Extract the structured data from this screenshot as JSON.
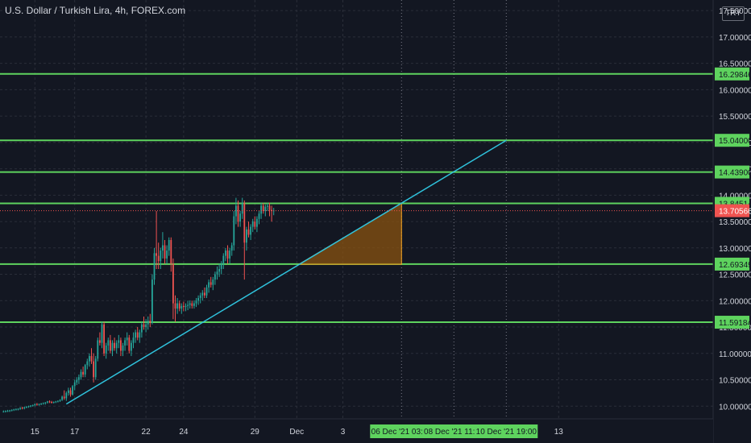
{
  "header": {
    "title": "U.S. Dollar / Turkish Lira, 4h, FOREX.com",
    "currency": "TRY"
  },
  "colors": {
    "background": "#131722",
    "grid": "#2a2e39",
    "text": "#d1d4dc",
    "up": "#26a69a",
    "down": "#ef5350",
    "level": "#5ed35e",
    "level_label_bg": "#5ed35e",
    "trendline": "#2fc2dc",
    "triangle_fill": "#8a5310",
    "triangle_edge": "#f5a623",
    "price_line": "#ef5350",
    "date_label_bg": "#5ed35e"
  },
  "chart_data": {
    "type": "candlestick",
    "symbol": "USDTRY",
    "interval": "4h",
    "ylim": [
      9.76,
      17.7
    ],
    "y_ticks": [
      "10.00000",
      "10.50000",
      "11.00000",
      "11.50000",
      "12.00000",
      "12.50000",
      "13.00000",
      "13.50000",
      "14.00000",
      "14.50000",
      "15.00000",
      "15.50000",
      "16.00000",
      "16.50000",
      "17.00000",
      "17.50000"
    ],
    "x_ticks": [
      {
        "label": "15",
        "i": 15
      },
      {
        "label": "17",
        "i": 34
      },
      {
        "label": "22",
        "i": 68
      },
      {
        "label": "24",
        "i": 86
      },
      {
        "label": "29",
        "i": 120
      },
      {
        "label": "Dec",
        "i": 140
      },
      {
        "label": "3",
        "i": 162
      },
      {
        "label": "13",
        "i": 265
      }
    ],
    "horizontal_levels": [
      "16.29846",
      "15.04000",
      "14.43900",
      "13.84514",
      "12.69349",
      "11.59184"
    ],
    "current_price": "13.70566",
    "trendline": {
      "from": {
        "i": 30,
        "price": 10.04
      },
      "to": {
        "i": 240,
        "price": 15.04
      }
    },
    "triangle": {
      "points": [
        {
          "i": 141,
          "price": 12.69
        },
        {
          "i": 190,
          "price": 13.845
        },
        {
          "i": 190,
          "price": 12.69
        }
      ]
    },
    "vertical_markers": [
      {
        "label": "06 Dec '21   03:00",
        "i": 190
      },
      {
        "label": "08 Dec '21   11:00",
        "i": 215
      },
      {
        "label": "10 Dec '21   19:00",
        "i": 240
      }
    ],
    "candles": [
      [
        9.9,
        9.92,
        9.88,
        9.9
      ],
      [
        9.9,
        9.92,
        9.88,
        9.91
      ],
      [
        9.91,
        9.93,
        9.89,
        9.91
      ],
      [
        9.91,
        9.93,
        9.89,
        9.92
      ],
      [
        9.92,
        9.94,
        9.9,
        9.93
      ],
      [
        9.93,
        9.95,
        9.91,
        9.94
      ],
      [
        9.94,
        9.96,
        9.92,
        9.94
      ],
      [
        9.94,
        9.96,
        9.92,
        9.95
      ],
      [
        9.95,
        9.98,
        9.93,
        9.97
      ],
      [
        9.97,
        9.99,
        9.94,
        9.96
      ],
      [
        9.96,
        9.99,
        9.94,
        9.98
      ],
      [
        9.98,
        10.0,
        9.96,
        9.99
      ],
      [
        9.99,
        10.01,
        9.97,
        10.0
      ],
      [
        10.0,
        10.02,
        9.98,
        10.01
      ],
      [
        10.01,
        10.03,
        9.99,
        10.02
      ],
      [
        10.02,
        10.05,
        10.0,
        10.04
      ],
      [
        10.04,
        10.06,
        10.01,
        10.03
      ],
      [
        10.03,
        10.05,
        10.01,
        10.04
      ],
      [
        10.04,
        10.06,
        10.02,
        10.05
      ],
      [
        10.05,
        10.07,
        10.03,
        10.06
      ],
      [
        10.06,
        10.08,
        10.03,
        10.07
      ],
      [
        10.07,
        10.1,
        10.05,
        10.09
      ],
      [
        10.09,
        10.11,
        10.06,
        10.08
      ],
      [
        10.08,
        10.1,
        10.05,
        10.07
      ],
      [
        10.07,
        10.09,
        10.05,
        10.08
      ],
      [
        10.08,
        10.1,
        10.06,
        10.09
      ],
      [
        10.09,
        10.11,
        10.07,
        10.1
      ],
      [
        10.1,
        10.13,
        10.08,
        10.12
      ],
      [
        10.12,
        10.2,
        10.1,
        10.18
      ],
      [
        10.18,
        10.3,
        10.12,
        10.15
      ],
      [
        10.15,
        10.28,
        10.1,
        10.25
      ],
      [
        10.25,
        10.35,
        10.2,
        10.3
      ],
      [
        10.3,
        10.35,
        10.18,
        10.22
      ],
      [
        10.22,
        10.4,
        10.2,
        10.38
      ],
      [
        10.38,
        10.5,
        10.3,
        10.45
      ],
      [
        10.45,
        10.55,
        10.4,
        10.5
      ],
      [
        10.5,
        10.6,
        10.42,
        10.55
      ],
      [
        10.55,
        10.7,
        10.5,
        10.65
      ],
      [
        10.65,
        10.75,
        10.55,
        10.6
      ],
      [
        10.6,
        10.8,
        10.55,
        10.78
      ],
      [
        10.78,
        10.9,
        10.7,
        10.85
      ],
      [
        10.85,
        11.0,
        10.75,
        10.95
      ],
      [
        10.95,
        11.1,
        10.8,
        10.85
      ],
      [
        10.85,
        11.0,
        10.45,
        10.55
      ],
      [
        10.55,
        10.95,
        10.5,
        10.9
      ],
      [
        10.9,
        11.3,
        10.85,
        11.25
      ],
      [
        11.25,
        11.4,
        11.15,
        11.2
      ],
      [
        11.2,
        11.6,
        11.1,
        11.55
      ],
      [
        11.55,
        11.6,
        10.95,
        11.0
      ],
      [
        11.0,
        11.2,
        10.9,
        11.15
      ],
      [
        11.15,
        11.3,
        11.05,
        11.25
      ],
      [
        11.25,
        11.35,
        11.0,
        11.05
      ],
      [
        11.05,
        11.25,
        10.95,
        11.2
      ],
      [
        11.2,
        11.3,
        11.05,
        11.1
      ],
      [
        11.1,
        11.25,
        11.0,
        11.2
      ],
      [
        11.2,
        11.35,
        11.1,
        11.25
      ],
      [
        11.25,
        11.3,
        10.95,
        11.05
      ],
      [
        11.05,
        11.2,
        10.95,
        11.15
      ],
      [
        11.15,
        11.3,
        11.05,
        11.25
      ],
      [
        11.25,
        11.4,
        11.15,
        11.3
      ],
      [
        11.3,
        11.35,
        11.0,
        11.05
      ],
      [
        11.05,
        11.25,
        10.95,
        11.2
      ],
      [
        11.2,
        11.4,
        11.1,
        11.3
      ],
      [
        11.3,
        11.45,
        11.2,
        11.4
      ],
      [
        11.4,
        11.5,
        11.25,
        11.3
      ],
      [
        11.3,
        11.45,
        11.2,
        11.4
      ],
      [
        11.4,
        11.6,
        11.3,
        11.55
      ],
      [
        11.55,
        11.7,
        11.45,
        11.5
      ],
      [
        11.5,
        11.65,
        11.4,
        11.55
      ],
      [
        11.55,
        11.7,
        11.45,
        11.62
      ],
      [
        11.62,
        11.75,
        11.5,
        11.58
      ],
      [
        11.58,
        12.5,
        11.55,
        12.4
      ],
      [
        12.4,
        13.0,
        12.3,
        12.9
      ],
      [
        12.9,
        13.7,
        12.6,
        12.85
      ],
      [
        12.85,
        13.1,
        12.6,
        12.75
      ],
      [
        12.75,
        13.0,
        12.6,
        12.95
      ],
      [
        12.95,
        13.3,
        12.8,
        13.05
      ],
      [
        13.05,
        13.15,
        12.7,
        12.8
      ],
      [
        12.8,
        13.05,
        12.7,
        12.95
      ],
      [
        12.95,
        13.2,
        12.85,
        13.15
      ],
      [
        13.15,
        13.2,
        12.55,
        12.7
      ],
      [
        12.7,
        12.8,
        11.65,
        11.95
      ],
      [
        11.95,
        12.1,
        11.6,
        11.85
      ],
      [
        11.85,
        12.05,
        11.75,
        11.95
      ],
      [
        11.95,
        12.0,
        11.8,
        11.85
      ],
      [
        11.85,
        11.95,
        11.75,
        11.9
      ],
      [
        11.9,
        11.98,
        11.8,
        11.88
      ],
      [
        11.88,
        11.95,
        11.8,
        11.9
      ],
      [
        11.9,
        12.0,
        11.82,
        11.92
      ],
      [
        11.92,
        12.0,
        11.85,
        11.95
      ],
      [
        11.95,
        12.0,
        11.85,
        11.9
      ],
      [
        11.9,
        12.0,
        11.85,
        11.95
      ],
      [
        11.95,
        12.05,
        11.88,
        12.0
      ],
      [
        12.0,
        12.1,
        11.92,
        12.05
      ],
      [
        12.05,
        12.15,
        11.95,
        12.1
      ],
      [
        12.1,
        12.2,
        12.0,
        12.15
      ],
      [
        12.15,
        12.25,
        12.05,
        12.1
      ],
      [
        12.1,
        12.3,
        12.05,
        12.25
      ],
      [
        12.25,
        12.4,
        12.15,
        12.35
      ],
      [
        12.35,
        12.45,
        12.25,
        12.3
      ],
      [
        12.3,
        12.45,
        12.2,
        12.4
      ],
      [
        12.4,
        12.55,
        12.3,
        12.5
      ],
      [
        12.5,
        12.65,
        12.4,
        12.55
      ],
      [
        12.55,
        12.7,
        12.45,
        12.6
      ],
      [
        12.6,
        12.75,
        12.5,
        12.7
      ],
      [
        12.7,
        12.9,
        12.6,
        12.85
      ],
      [
        12.85,
        13.0,
        12.75,
        12.95
      ],
      [
        12.95,
        13.05,
        12.7,
        12.8
      ],
      [
        12.8,
        13.0,
        12.7,
        12.95
      ],
      [
        12.95,
        13.1,
        12.85,
        13.05
      ],
      [
        13.05,
        13.7,
        12.95,
        13.6
      ],
      [
        13.6,
        13.95,
        13.45,
        13.8
      ],
      [
        13.8,
        13.9,
        13.4,
        13.5
      ],
      [
        13.5,
        13.7,
        13.4,
        13.65
      ],
      [
        13.65,
        13.95,
        13.55,
        13.85
      ],
      [
        13.85,
        13.9,
        12.4,
        13.1
      ],
      [
        13.1,
        13.4,
        12.95,
        13.35
      ],
      [
        13.35,
        13.5,
        13.2,
        13.25
      ],
      [
        13.25,
        13.45,
        13.15,
        13.4
      ],
      [
        13.4,
        13.55,
        13.3,
        13.5
      ],
      [
        13.5,
        13.6,
        13.35,
        13.4
      ],
      [
        13.4,
        13.6,
        13.3,
        13.55
      ],
      [
        13.55,
        13.7,
        13.45,
        13.65
      ],
      [
        13.65,
        13.85,
        13.55,
        13.8
      ],
      [
        13.8,
        13.85,
        13.65,
        13.7
      ],
      [
        13.7,
        13.82,
        13.6,
        13.78
      ],
      [
        13.78,
        13.85,
        13.7,
        13.8
      ],
      [
        13.8,
        13.86,
        13.6,
        13.72
      ],
      [
        13.72,
        13.8,
        13.5,
        13.7
      ],
      [
        13.7,
        13.76,
        13.62,
        13.71
      ]
    ]
  }
}
